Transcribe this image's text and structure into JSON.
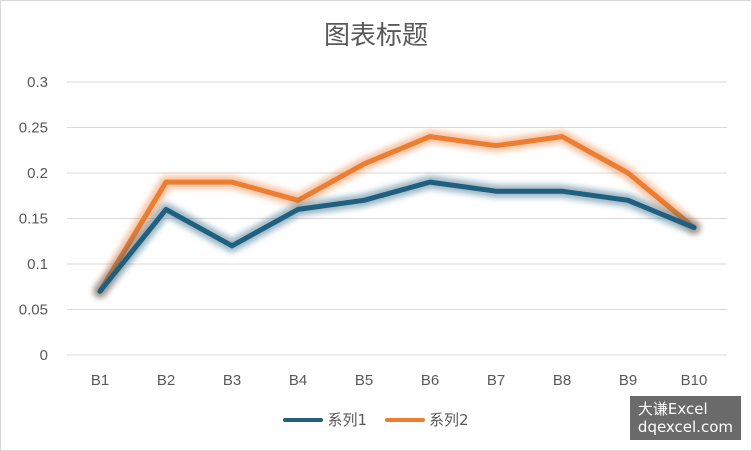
{
  "chart_data": {
    "type": "line",
    "title": "图表标题",
    "categories": [
      "B1",
      "B2",
      "B3",
      "B4",
      "B5",
      "B6",
      "B7",
      "B8",
      "B9",
      "B10"
    ],
    "series": [
      {
        "name": "系列1",
        "color": "#1f5f7f",
        "values": [
          0.07,
          0.16,
          0.12,
          0.16,
          0.17,
          0.19,
          0.18,
          0.18,
          0.17,
          0.14
        ]
      },
      {
        "name": "系列2",
        "color": "#ed7d31",
        "values": [
          0.07,
          0.19,
          0.19,
          0.17,
          0.21,
          0.24,
          0.23,
          0.24,
          0.2,
          0.14
        ]
      }
    ],
    "y_ticks": [
      "0",
      "0.05",
      "0.1",
      "0.15",
      "0.2",
      "0.25",
      "0.3"
    ],
    "ylim": [
      0,
      0.3
    ],
    "grid": true,
    "legend_position": "bottom",
    "grid_color": "#d9d9d9"
  },
  "watermark": {
    "line1": "大谦Excel",
    "line2": "dqexcel.com"
  }
}
